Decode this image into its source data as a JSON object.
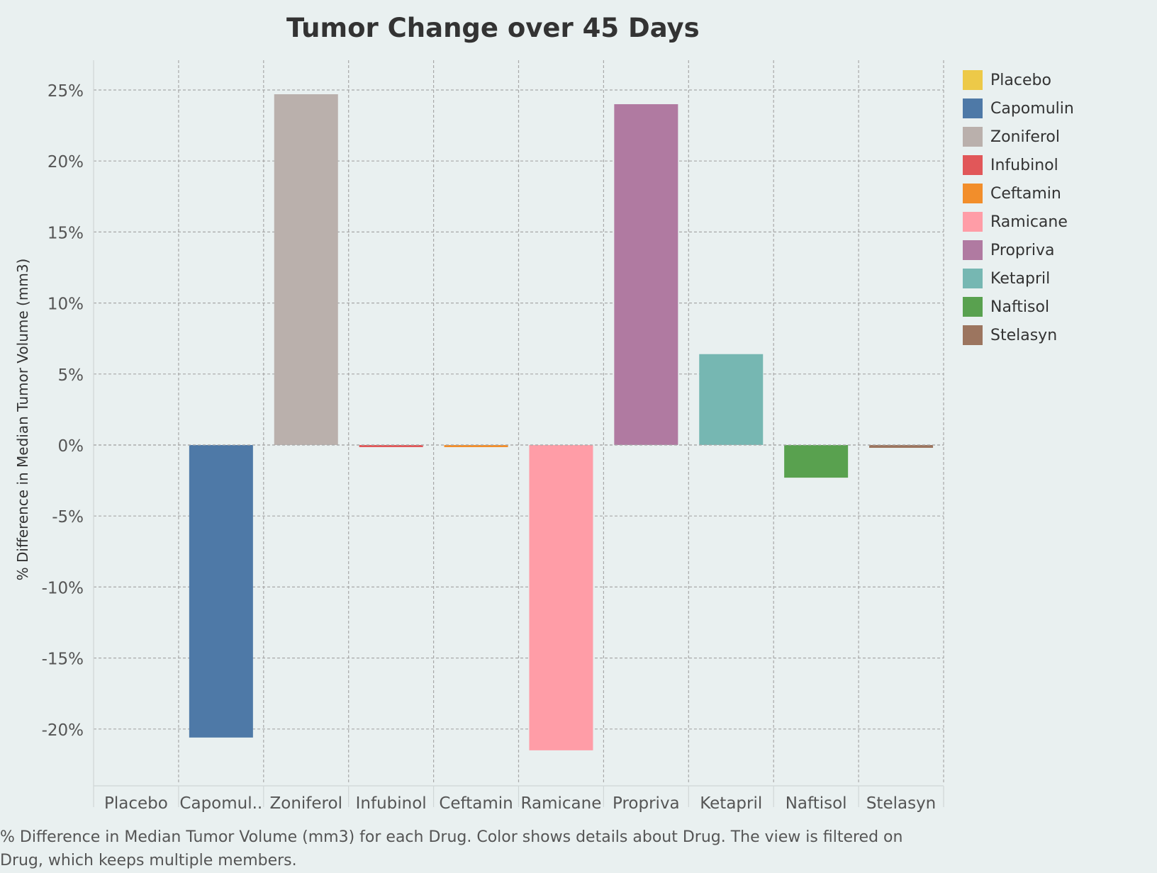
{
  "chart_data": {
    "type": "bar",
    "title": "Tumor Change over 45 Days",
    "ylabel": "% Difference in Median Tumor Volume (mm3)",
    "xlabel": "",
    "categories": [
      "Placebo",
      "Capomulin",
      "Zoniferol",
      "Infubinol",
      "Ceftamin",
      "Ramicane",
      "Propriva",
      "Ketapril",
      "Naftisol",
      "Stelasyn"
    ],
    "category_tick_labels": [
      "Placebo",
      "Capomul..",
      "Zoniferol",
      "Infubinol",
      "Ceftamin",
      "Ramicane",
      "Propriva",
      "Ketapril",
      "Naftisol",
      "Stelasyn"
    ],
    "values": [
      null,
      -20.6,
      24.7,
      -0.1,
      -0.1,
      -21.5,
      24.0,
      6.4,
      -2.3,
      -0.2
    ],
    "colors": [
      "#edc948",
      "#4e79a7",
      "#bab0ac",
      "#e15759",
      "#f28e2b",
      "#ff9da7",
      "#b07aa1",
      "#76b7b2",
      "#59a14f",
      "#9c755f"
    ],
    "ylim": [
      -23.8,
      27
    ],
    "yticks": [
      25,
      20,
      15,
      10,
      5,
      0,
      -5,
      -10,
      -15,
      -20
    ],
    "ytick_labels": [
      "25%",
      "20%",
      "15%",
      "10%",
      "5%",
      "0%",
      "-5%",
      "-10%",
      "-15%",
      "-20%"
    ],
    "grid": true,
    "legend_position": "right",
    "legend": [
      "Placebo",
      "Capomulin",
      "Zoniferol",
      "Infubinol",
      "Ceftamin",
      "Ramicane",
      "Propriva",
      "Ketapril",
      "Naftisol",
      "Stelasyn"
    ]
  },
  "caption": "% Difference in Median Tumor Volume (mm3) for each Drug.  Color shows details about Drug. The view is filtered on Drug, which keeps multiple members."
}
